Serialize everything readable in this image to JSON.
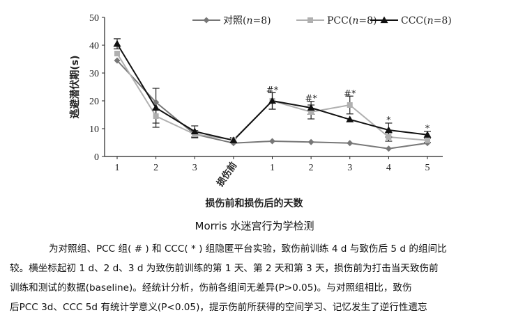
{
  "chart_data": {
    "type": "line",
    "ylabel": "逃避潜伏期(s)",
    "xlabel": "损伤前和损伤后的天数",
    "ylim": [
      0,
      50
    ],
    "yticks": [
      0,
      10,
      20,
      30,
      40,
      50
    ],
    "categories": [
      "1",
      "2",
      "3",
      "损伤前",
      "1",
      "2",
      "3",
      "4",
      "5"
    ],
    "legend_placement": "top-right",
    "series": [
      {
        "name_main": "对照(",
        "name_italic": "n",
        "name_tail": "=8)",
        "marker": "diamond",
        "color": "#777777",
        "values": [
          34.5,
          19.5,
          8.0,
          4.8,
          5.5,
          5.2,
          4.8,
          2.8,
          4.8
        ],
        "errors": [
          0,
          0,
          0,
          0,
          0,
          0,
          0,
          0,
          0
        ]
      },
      {
        "name_main": "PCC(",
        "name_italic": "n",
        "name_tail": "=8)",
        "marker": "square",
        "color": "#b0b0b0",
        "values": [
          37.0,
          14.5,
          8.0,
          6.0,
          20.0,
          16.0,
          18.5,
          7.0,
          5.8
        ],
        "errors": [
          0,
          2.5,
          1.3,
          0.8,
          3.0,
          2.5,
          3.2,
          1.5,
          0.8
        ]
      },
      {
        "name_main": "CCC(",
        "name_italic": "n",
        "name_tail": "=8)",
        "marker": "triangle",
        "color": "#111111",
        "values": [
          40.5,
          17.5,
          9.0,
          5.8,
          20.0,
          17.5,
          13.3,
          9.5,
          7.8
        ],
        "errors": [
          1.8,
          7.0,
          2.0,
          0.8,
          3.0,
          2.3,
          0,
          2.5,
          1.2
        ]
      }
    ],
    "annotations": [
      {
        "category_index": 4,
        "text": "#*",
        "y": 22.8
      },
      {
        "category_index": 5,
        "text": "#*",
        "y": 19.8
      },
      {
        "category_index": 6,
        "text": "#*",
        "y": 21.5
      },
      {
        "category_index": 7,
        "text": "*",
        "y": 12.0
      },
      {
        "category_index": 8,
        "text": "*",
        "y": 9.0
      }
    ]
  },
  "caption": "Morris 水迷宫行为学检测",
  "note_lines": [
    "为对照组、PCC 组( # ) 和 CCC( * ) 组隐匿平台实验，致伤前训练 4 d 与致伤后 5 d 的组间比",
    "较。横坐标起初 1 d、2 d、3 d 为致伤前训练的第 1 天、第 2 天和第 3 天，损伤前为打击当天致伤前",
    "训练和测试的数据(baseline)。经统计分析，伤前各组间无差异(P>0.05)。与对照组相比，致伤",
    "后PCC 3d、CCC 5d 有统计学意义(P<0.05)，提示伤前所获得的空间学习、记忆发生了逆行性遗忘"
  ]
}
